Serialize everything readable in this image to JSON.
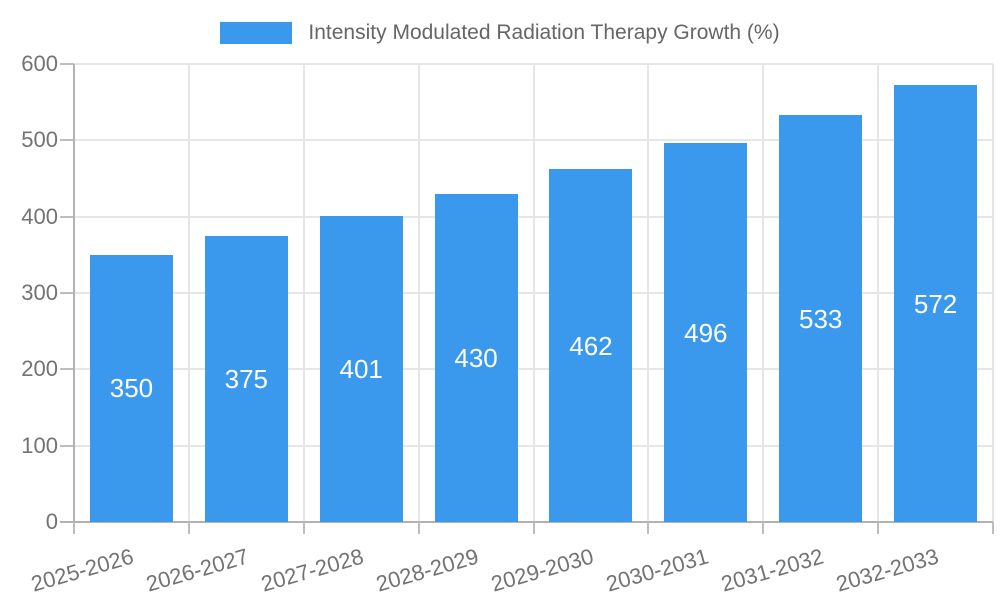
{
  "legend": {
    "label": "Intensity Modulated Radiation Therapy Growth (%)"
  },
  "chart_data": {
    "type": "bar",
    "title": "Intensity Modulated Radiation Therapy Growth (%)",
    "categories": [
      "2025-2026",
      "2026-2027",
      "2027-2028",
      "2028-2029",
      "2029-2030",
      "2030-2031",
      "2031-2032",
      "2032-2033"
    ],
    "values": [
      350,
      375,
      401,
      430,
      462,
      496,
      533,
      572
    ],
    "xlabel": "",
    "ylabel": "",
    "ylim": [
      0,
      600
    ],
    "yticks": [
      0,
      100,
      200,
      300,
      400,
      500,
      600
    ],
    "grid": true,
    "legend_position": "top",
    "bar_label_position": "center",
    "colors": {
      "bar": "#3a99ec",
      "grid": "#e6e6e6",
      "axis": "#b2b2b2",
      "tick_text": "#737373",
      "legend_text": "#666666",
      "value_label": "#ffffff",
      "background": "#ffffff"
    }
  }
}
